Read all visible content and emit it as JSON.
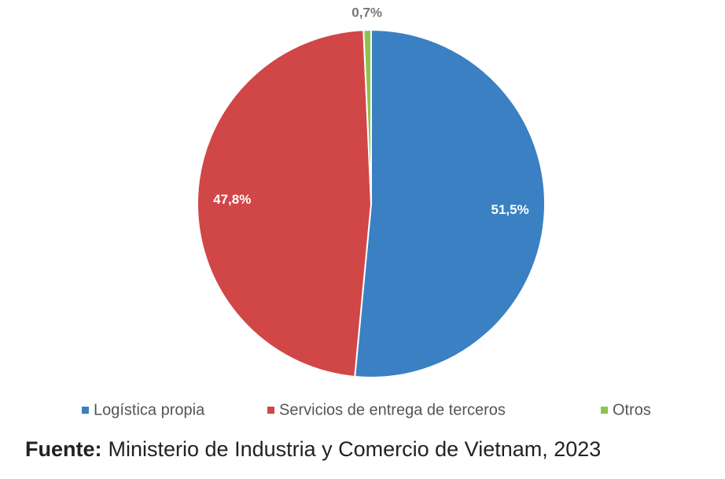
{
  "chart_data": {
    "type": "pie",
    "categories": [
      "Logística propia",
      "Servicios de entrega de terceros",
      "Otros"
    ],
    "values": [
      51.5,
      47.8,
      0.7
    ],
    "value_labels": [
      "51,5%",
      "47,8%",
      "0,7%"
    ],
    "colors": [
      "#3a80c2",
      "#d14646",
      "#8fc24c"
    ],
    "source_label": "Fuente:",
    "source": "Ministerio de Industria y Comercio de Vietnam, 2023"
  }
}
